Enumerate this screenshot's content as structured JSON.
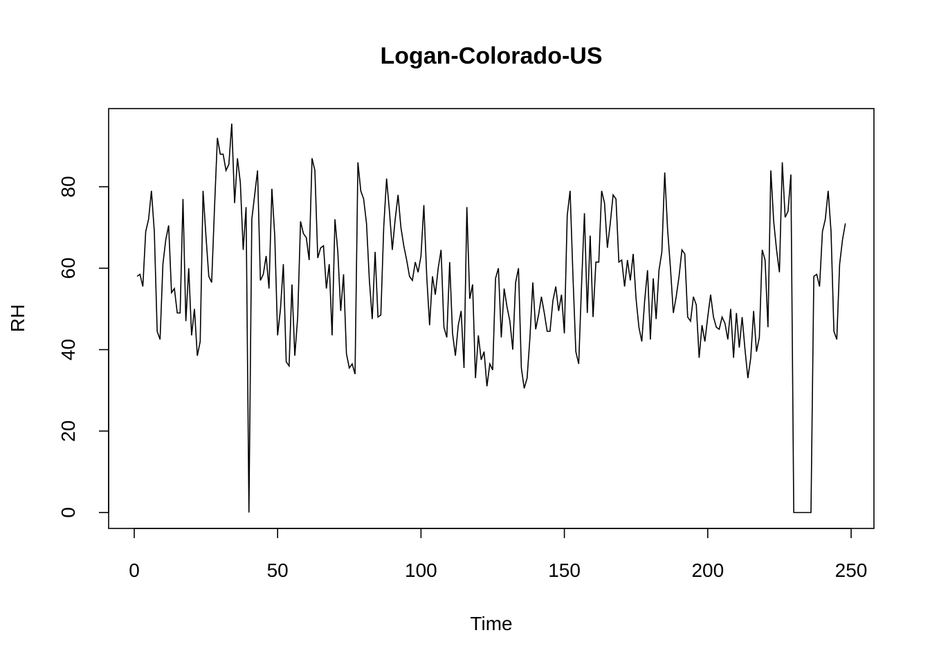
{
  "chart_data": {
    "type": "line",
    "title": "Logan-Colorado-US",
    "xlabel": "Time",
    "ylabel": "RH",
    "xlim": [
      0,
      250
    ],
    "ylim": [
      0,
      95
    ],
    "x_ticks": [
      0,
      50,
      100,
      150,
      200,
      250
    ],
    "y_ticks": [
      0,
      20,
      40,
      60,
      80
    ],
    "grid": false,
    "legend": "none",
    "series": [
      {
        "line_color": "#000000",
        "x_start": 1,
        "values": [
          58,
          58.5,
          55.5,
          69,
          72,
          79,
          69,
          44.5,
          42.5,
          61,
          67,
          70.5,
          54,
          55,
          49,
          49,
          77,
          47,
          60,
          43.5,
          50,
          38.5,
          42,
          79,
          68,
          58,
          56.5,
          75,
          92,
          88,
          88,
          84,
          85.5,
          95.5,
          76,
          87,
          81,
          64.5,
          75,
          0,
          72,
          78,
          84,
          57,
          58.5,
          63,
          55,
          79.5,
          68,
          43.5,
          50,
          61,
          37,
          36,
          56,
          38.5,
          48,
          71.5,
          68.5,
          67.5,
          62,
          87,
          84,
          62.5,
          65,
          65.5,
          55,
          61,
          43.5,
          72,
          64,
          49.5,
          58.5,
          39,
          35.5,
          36.5,
          34,
          86,
          79,
          77,
          71,
          57,
          47.5,
          64,
          48,
          48.5,
          70,
          82,
          74,
          64.5,
          72,
          78,
          70,
          65.5,
          62,
          58,
          57,
          61.5,
          59,
          63,
          75.5,
          58,
          46,
          58,
          53.5,
          60,
          64.5,
          45.5,
          43,
          61.5,
          44,
          38.5,
          46,
          49.5,
          35.5,
          75,
          52.5,
          56,
          33,
          43.5,
          37.5,
          39.5,
          31,
          36.5,
          35,
          57.5,
          60,
          43,
          55,
          50.5,
          47,
          40,
          56.5,
          60,
          35.5,
          30.5,
          33,
          43,
          56.5,
          45,
          48.5,
          53,
          49,
          44.5,
          44.5,
          52,
          55.5,
          49.5,
          53.5,
          44,
          73,
          79,
          58,
          39.5,
          36.5,
          56,
          73.5,
          49,
          68,
          48,
          61.5,
          61.5,
          79,
          76,
          65,
          71,
          78,
          77,
          61.5,
          62,
          55.5,
          62,
          57,
          63.5,
          52.5,
          45.5,
          42,
          52,
          59.5,
          42.5,
          57.5,
          47.5,
          59.5,
          64,
          83.5,
          69.5,
          60,
          49,
          53,
          58,
          64.5,
          63.5,
          48,
          47,
          53,
          51,
          38,
          46,
          42,
          48,
          53.5,
          48,
          45.5,
          45,
          48,
          46.5,
          42.5,
          50,
          38,
          49,
          40.5,
          48,
          40,
          33,
          38,
          49.5,
          39.5,
          43,
          64.5,
          62,
          45.5,
          84,
          71.5,
          64.5,
          59,
          86,
          72.5,
          74,
          83,
          0,
          0,
          0,
          0,
          0,
          0,
          0,
          58,
          58.5,
          55.5,
          69,
          72,
          79,
          69,
          44.5,
          42.5,
          61,
          67,
          71
        ]
      }
    ]
  }
}
